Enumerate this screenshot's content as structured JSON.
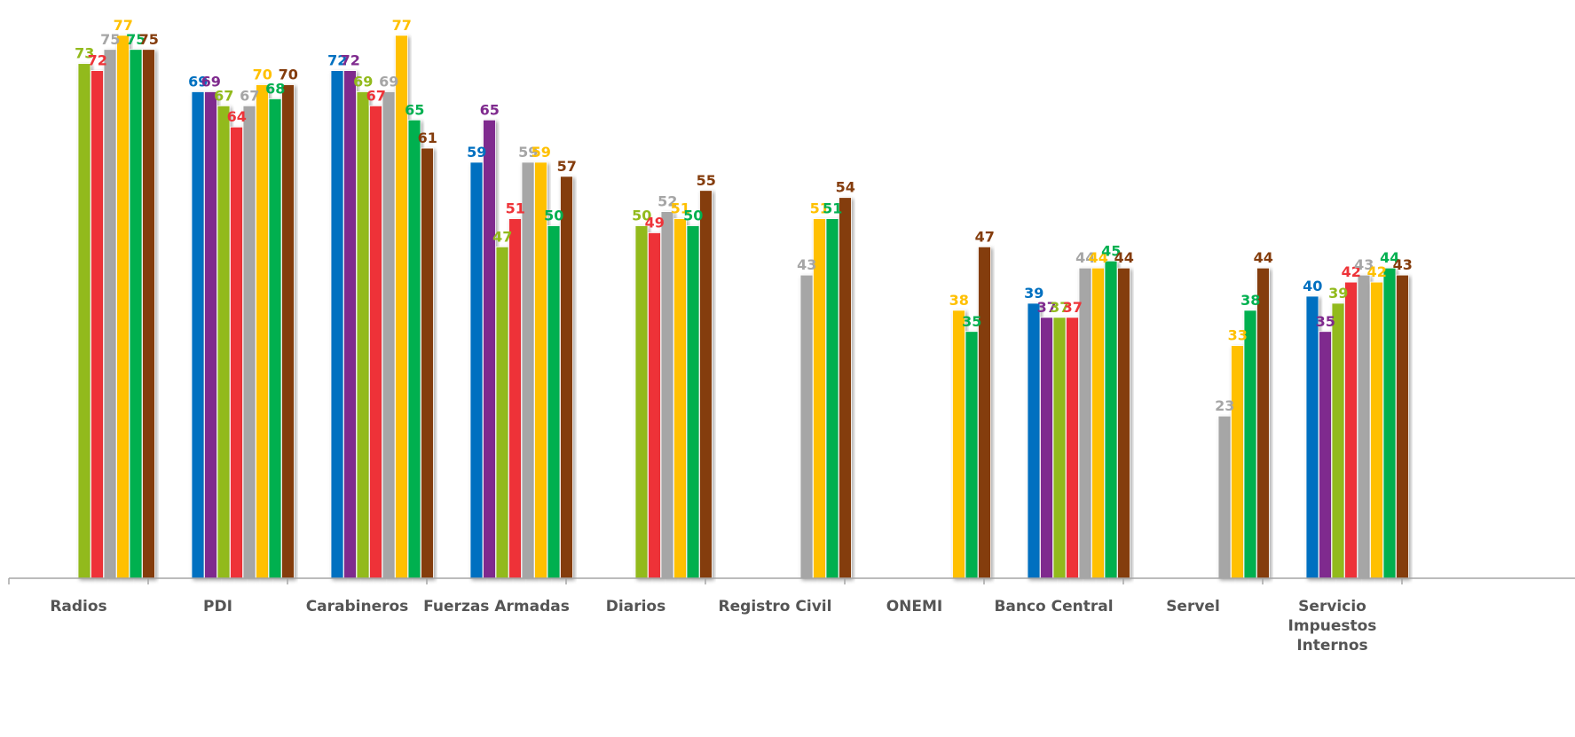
{
  "chart_data": {
    "type": "bar",
    "categories": [
      [
        "Radios"
      ],
      [
        "PDI"
      ],
      [
        "Carabineros"
      ],
      [
        "Fuerzas Armadas"
      ],
      [
        "Diarios"
      ],
      [
        "Registro Civil"
      ],
      [
        "ONEMI"
      ],
      [
        "Banco Central"
      ],
      [
        "Servel"
      ],
      [
        "Servicio",
        "Impuestos",
        "Internos"
      ]
    ],
    "series": [
      {
        "color": "#0070C0",
        "values": [
          null,
          69,
          72,
          59,
          null,
          null,
          null,
          39,
          null,
          40
        ]
      },
      {
        "color": "#7F2A8E",
        "values": [
          null,
          69,
          72,
          65,
          null,
          null,
          null,
          37,
          null,
          35
        ]
      },
      {
        "color": "#92BA1C",
        "values": [
          73,
          67,
          69,
          47,
          50,
          null,
          null,
          37,
          null,
          39
        ]
      },
      {
        "color": "#EE3338",
        "values": [
          72,
          64,
          67,
          51,
          49,
          null,
          null,
          37,
          null,
          42
        ]
      },
      {
        "color": "#A6A6A6",
        "values": [
          75,
          67,
          69,
          59,
          52,
          43,
          null,
          44,
          23,
          43
        ]
      },
      {
        "color": "#FFC000",
        "values": [
          77,
          70,
          77,
          59,
          51,
          51,
          38,
          44,
          33,
          42
        ]
      },
      {
        "color": "#00B050",
        "values": [
          75,
          68,
          65,
          50,
          50,
          51,
          35,
          45,
          38,
          44
        ]
      },
      {
        "color": "#843C0C",
        "values": [
          75,
          70,
          61,
          57,
          55,
          54,
          47,
          44,
          44,
          43
        ]
      }
    ],
    "ylim": [
      0,
      80
    ],
    "grid": false,
    "legend": "none"
  }
}
